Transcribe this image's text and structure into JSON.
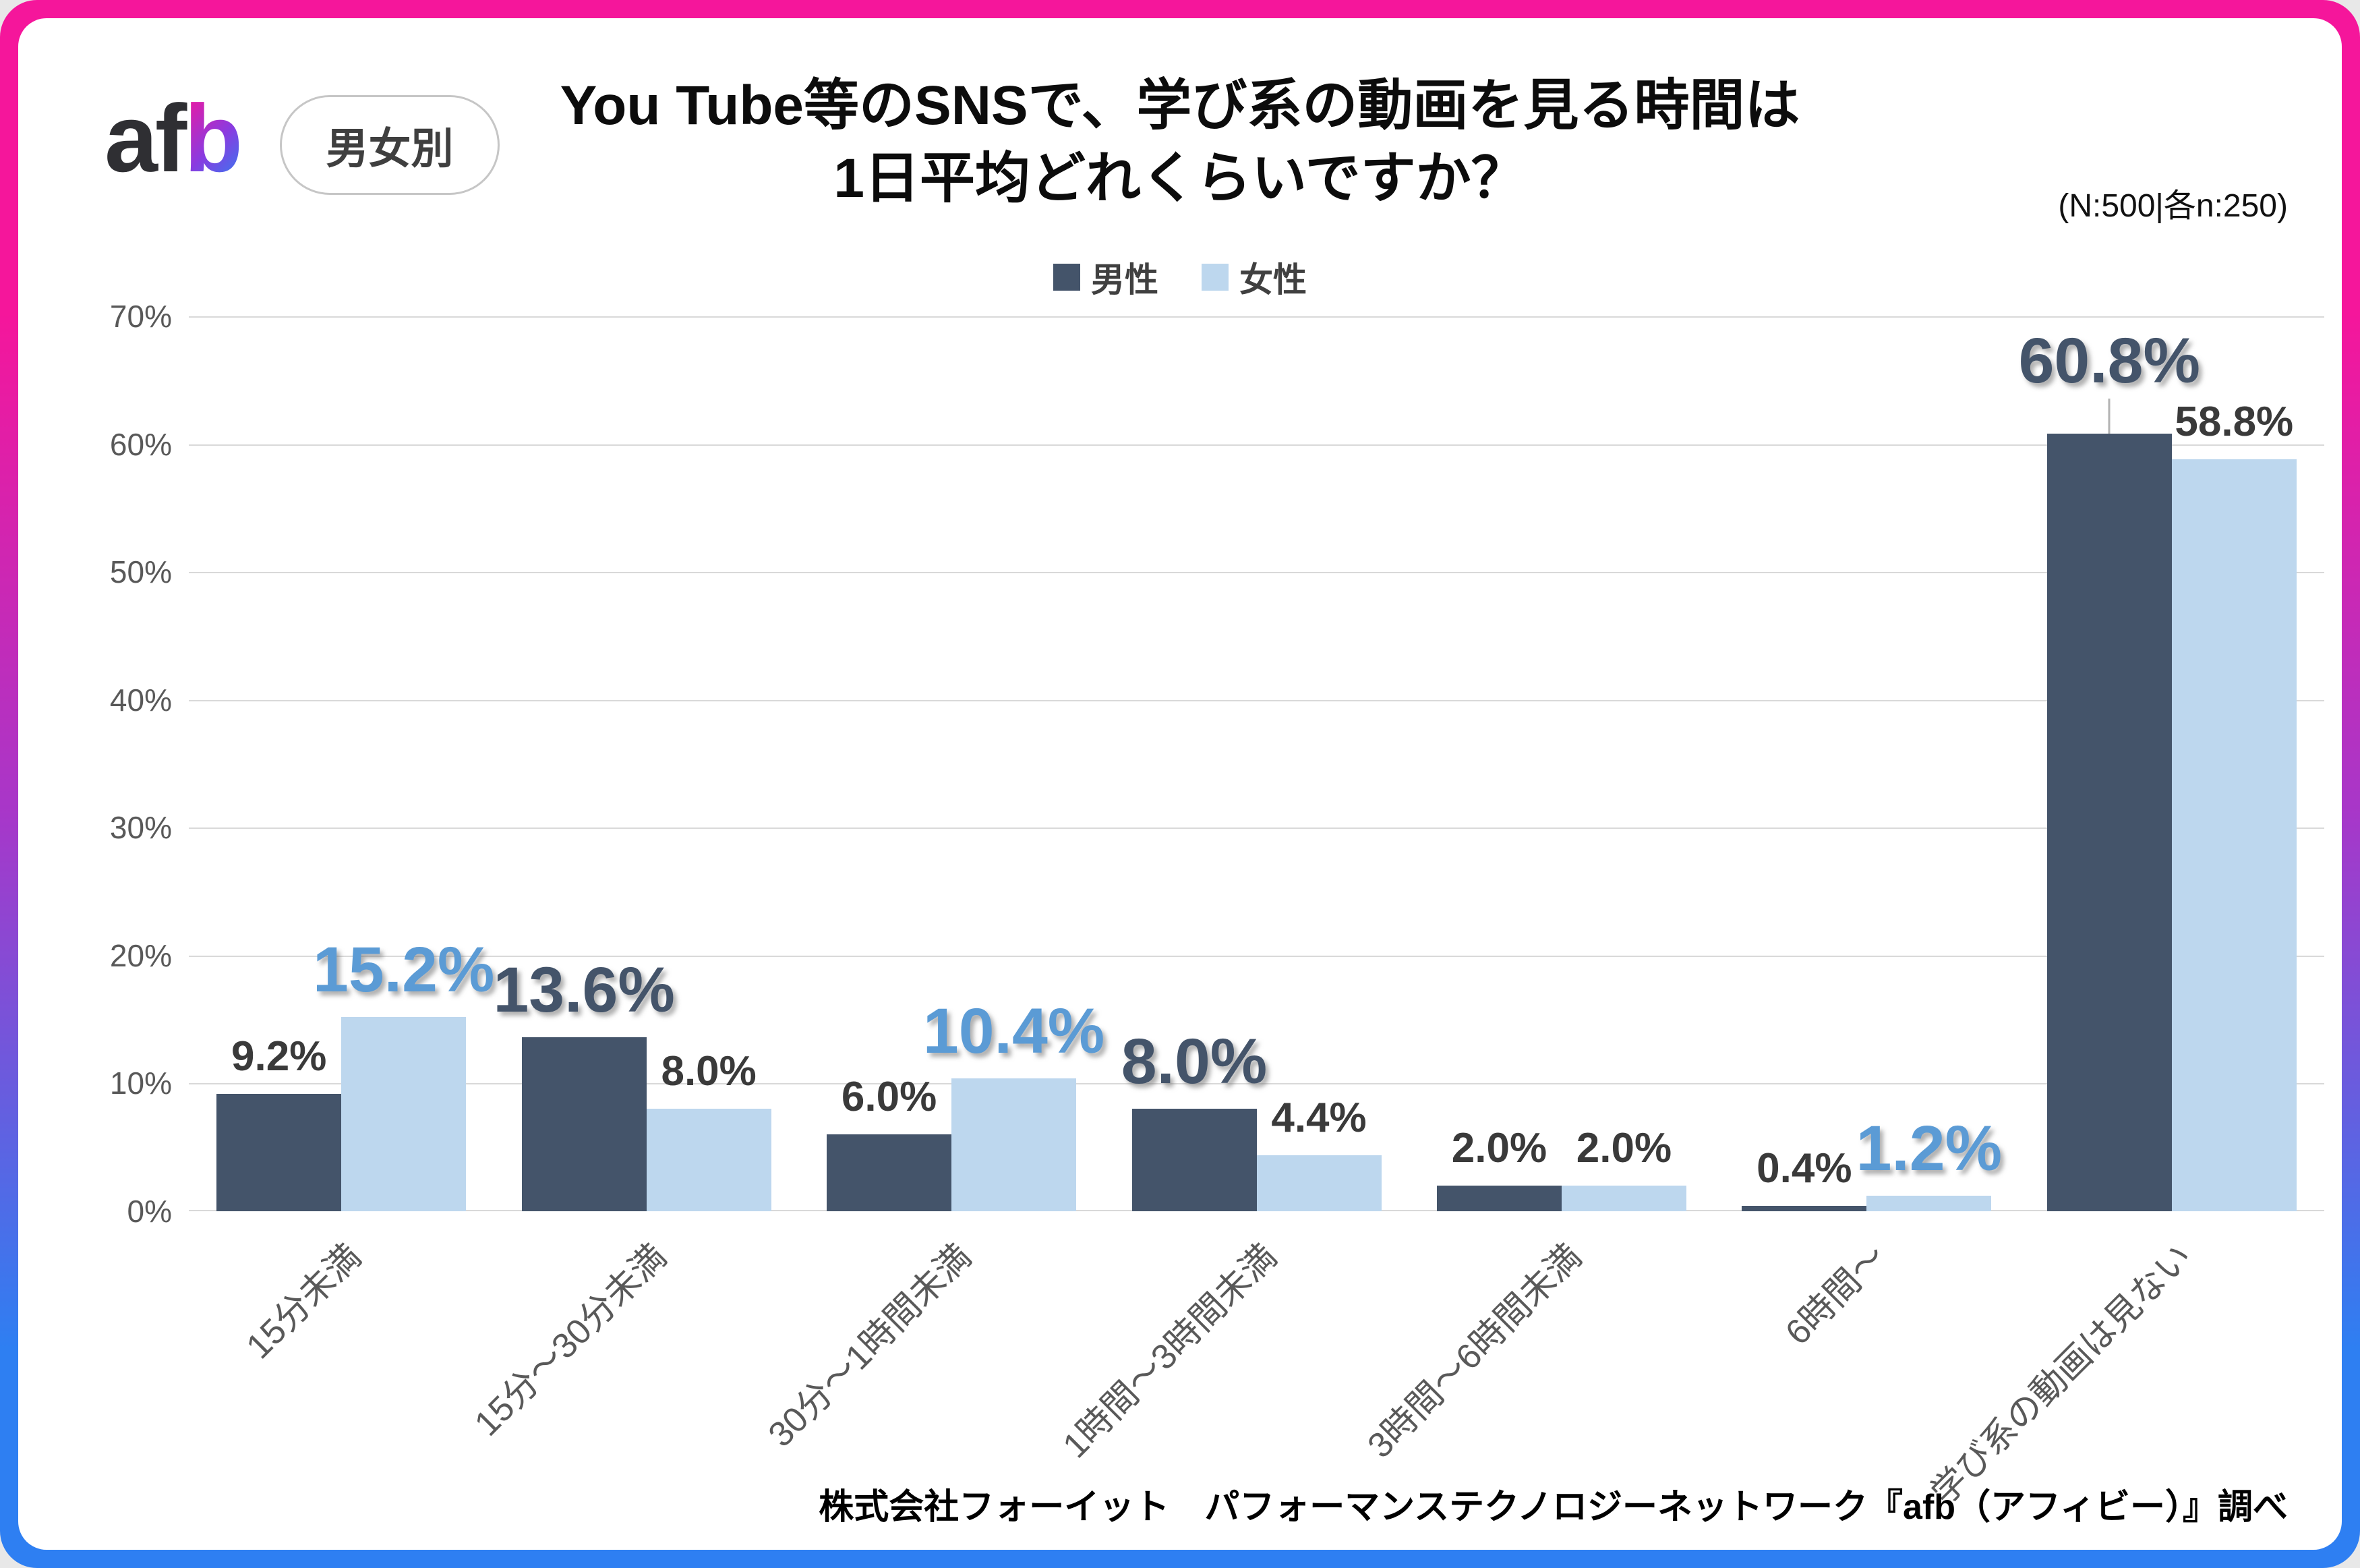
{
  "frame": {
    "gradient_top": "#f5169b",
    "gradient_mid": "#a737c9",
    "gradient_bottom": "#2e7ff2",
    "card_background": "#ffffff"
  },
  "header": {
    "logo_af": "af",
    "logo_b": "b",
    "badge": "男女別",
    "title_line1": "You Tube等のSNSで、学び系の動画を見る時間は",
    "title_line2": "1日平均どれくらいですか？",
    "sample_note": "(N:500|各n:250)"
  },
  "chart_data": {
    "type": "bar",
    "title": "You Tube等のSNSで、学び系の動画を見る時間は1日平均どれくらいですか？",
    "subtitle": "(N:500|各n:250)",
    "categories": [
      "15分未満",
      "15分〜30分未満",
      "30分〜1時間未満",
      "1時間〜3時間未満",
      "3時間〜6時間未満",
      "6時間〜",
      "学び系の動画は見ない"
    ],
    "series": [
      {
        "name": "男性",
        "color": "#44546a",
        "values": [
          9.2,
          13.6,
          6.0,
          8.0,
          2.0,
          0.4,
          60.8
        ]
      },
      {
        "name": "女性",
        "color": "#bdd7ee",
        "values": [
          15.2,
          8.0,
          10.4,
          4.4,
          2.0,
          1.2,
          58.8
        ]
      }
    ],
    "data_label_format": "0.0%",
    "emphasized_series_per_category": [
      1,
      0,
      1,
      0,
      -1,
      1,
      0
    ],
    "emphasis_label_colors": {
      "男性": "#44546a",
      "女性": "#5b9bd5"
    },
    "normal_label_color": "#3a3a3a",
    "y_ticks": [
      "0%",
      "10%",
      "20%",
      "30%",
      "40%",
      "50%",
      "60%",
      "70%"
    ],
    "ylim": [
      0,
      70
    ],
    "grid": true,
    "gridline_color": "#d9d9d9",
    "legend_position": "top",
    "leader_line": {
      "category": 6,
      "series": 0
    }
  },
  "footer": {
    "source": "株式会社フォーイット　パフォーマンステクノロジーネットワーク『afb（アフィビー）』調べ"
  }
}
